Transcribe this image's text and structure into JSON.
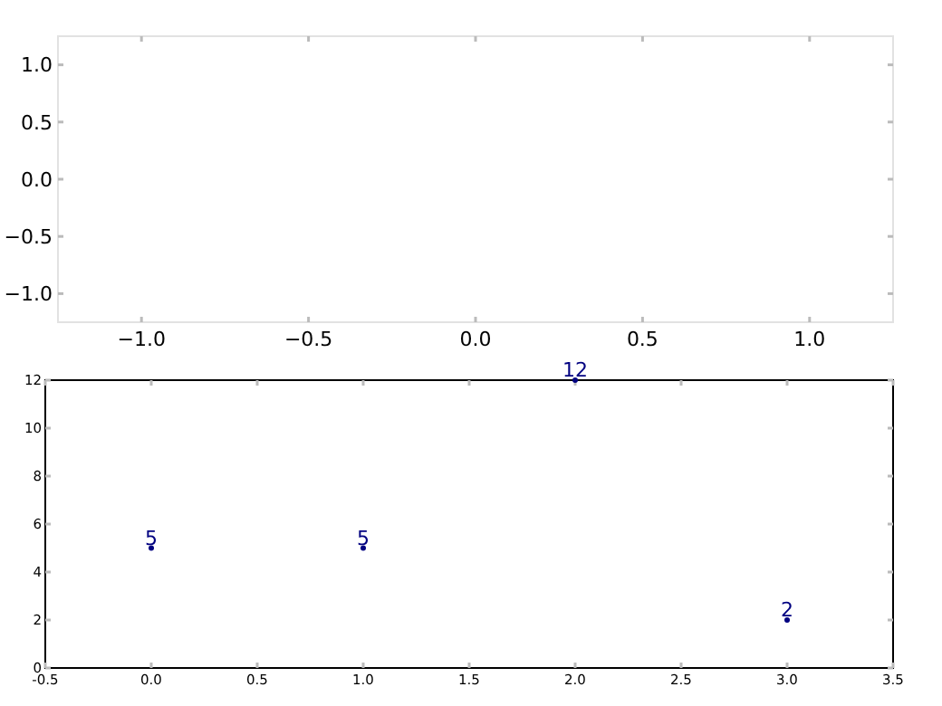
{
  "chart_data": [
    {
      "type": "scatter",
      "xlim": [
        -1.25,
        1.25
      ],
      "ylim": [
        -1.25,
        1.25
      ],
      "xticks": [
        {
          "value": -1.0,
          "label": "−1.0"
        },
        {
          "value": -0.5,
          "label": "−0.5"
        },
        {
          "value": 0,
          "label": "0.0"
        },
        {
          "value": 0.5,
          "label": "0.5"
        },
        {
          "value": 1.0,
          "label": "1.0"
        }
      ],
      "yticks": [
        {
          "value": 1.0,
          "label": "1.0"
        },
        {
          "value": 0.5,
          "label": "0.5"
        },
        {
          "value": 0,
          "label": "0.0"
        },
        {
          "value": -0.5,
          "label": "−0.5"
        },
        {
          "value": -1.0,
          "label": "−1.0"
        }
      ],
      "grid": false
    },
    {
      "type": "scatter",
      "x": [
        0,
        1,
        2,
        3
      ],
      "values": [
        5,
        5,
        12,
        2
      ],
      "color": "#000080",
      "marker": "circle",
      "data_labels": true,
      "xlim": [
        -0.5,
        3.5
      ],
      "ylim": [
        0,
        12
      ],
      "xticks": [
        {
          "value": -0.5,
          "label": "-0.5"
        },
        {
          "value": 0,
          "label": "0.0"
        },
        {
          "value": 0.5,
          "label": "0.5"
        },
        {
          "value": 1,
          "label": "1.0"
        },
        {
          "value": 1.5,
          "label": "1.5"
        },
        {
          "value": 2,
          "label": "2.0"
        },
        {
          "value": 2.5,
          "label": "2.5"
        },
        {
          "value": 3,
          "label": "3.0"
        },
        {
          "value": 3.5,
          "label": "3.5"
        }
      ],
      "yticks": [
        0,
        2,
        4,
        6,
        8,
        10,
        12
      ],
      "grid": false
    }
  ]
}
